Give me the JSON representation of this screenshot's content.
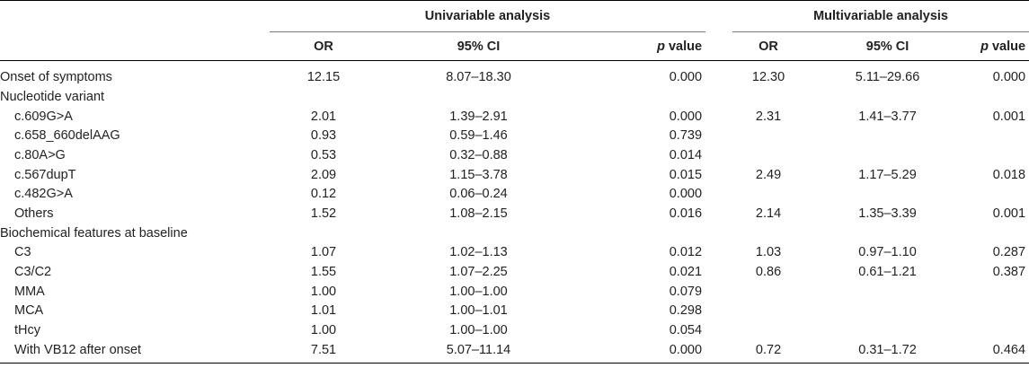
{
  "header": {
    "univariable_label": "Univariable analysis",
    "multivariable_label": "Multivariable analysis",
    "or_label": "OR",
    "ci_label": "95% CI",
    "p_italic": "p",
    "p_suffix": " value"
  },
  "rows": [
    {
      "label": "Onset of symptoms",
      "indent": false,
      "u_or": "12.15",
      "u_ci": "8.07–18.30",
      "u_p": "0.000",
      "m_or": "12.30",
      "m_ci": "5.11–29.66",
      "m_p": "0.000"
    },
    {
      "label": "Nucleotide variant",
      "indent": false,
      "u_or": "",
      "u_ci": "",
      "u_p": "",
      "m_or": "",
      "m_ci": "",
      "m_p": ""
    },
    {
      "label": "c.609G>A",
      "indent": true,
      "u_or": "2.01",
      "u_ci": "1.39–2.91",
      "u_p": "0.000",
      "m_or": "2.31",
      "m_ci": "1.41–3.77",
      "m_p": "0.001"
    },
    {
      "label": "c.658_660delAAG",
      "indent": true,
      "u_or": "0.93",
      "u_ci": "0.59–1.46",
      "u_p": "0.739",
      "m_or": "",
      "m_ci": "",
      "m_p": ""
    },
    {
      "label": "c.80A>G",
      "indent": true,
      "u_or": "0.53",
      "u_ci": "0.32–0.88",
      "u_p": "0.014",
      "m_or": "",
      "m_ci": "",
      "m_p": ""
    },
    {
      "label": "c.567dupT",
      "indent": true,
      "u_or": "2.09",
      "u_ci": "1.15–3.78",
      "u_p": "0.015",
      "m_or": "2.49",
      "m_ci": "1.17–5.29",
      "m_p": "0.018"
    },
    {
      "label": "c.482G>A",
      "indent": true,
      "u_or": "0.12",
      "u_ci": "0.06–0.24",
      "u_p": "0.000",
      "m_or": "",
      "m_ci": "",
      "m_p": ""
    },
    {
      "label": "Others",
      "indent": true,
      "u_or": "1.52",
      "u_ci": "1.08–2.15",
      "u_p": "0.016",
      "m_or": "2.14",
      "m_ci": "1.35–3.39",
      "m_p": "0.001"
    },
    {
      "label": "Biochemical features at baseline",
      "indent": false,
      "u_or": "",
      "u_ci": "",
      "u_p": "",
      "m_or": "",
      "m_ci": "",
      "m_p": ""
    },
    {
      "label": "C3",
      "indent": true,
      "u_or": "1.07",
      "u_ci": "1.02–1.13",
      "u_p": "0.012",
      "m_or": "1.03",
      "m_ci": "0.97–1.10",
      "m_p": "0.287"
    },
    {
      "label": "C3/C2",
      "indent": true,
      "u_or": "1.55",
      "u_ci": "1.07–2.25",
      "u_p": "0.021",
      "m_or": "0.86",
      "m_ci": "0.61–1.21",
      "m_p": "0.387"
    },
    {
      "label": "MMA",
      "indent": true,
      "u_or": "1.00",
      "u_ci": "1.00–1.00",
      "u_p": "0.079",
      "m_or": "",
      "m_ci": "",
      "m_p": ""
    },
    {
      "label": "MCA",
      "indent": true,
      "u_or": "1.01",
      "u_ci": "1.00–1.01",
      "u_p": "0.298",
      "m_or": "",
      "m_ci": "",
      "m_p": ""
    },
    {
      "label": "tHcy",
      "indent": true,
      "u_or": "1.00",
      "u_ci": "1.00–1.00",
      "u_p": "0.054",
      "m_or": "",
      "m_ci": "",
      "m_p": ""
    },
    {
      "label": "With VB12 after onset",
      "indent": true,
      "u_or": "7.51",
      "u_ci": "5.07–11.14",
      "u_p": "0.000",
      "m_or": "0.72",
      "m_ci": "0.31–1.72",
      "m_p": "0.464"
    }
  ]
}
